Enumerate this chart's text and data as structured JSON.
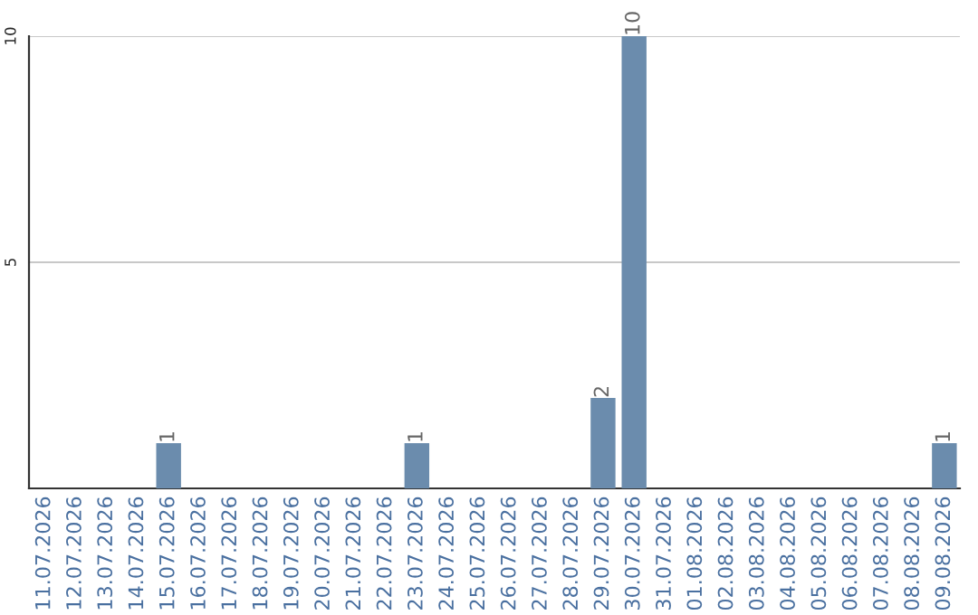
{
  "chart_data": {
    "type": "bar",
    "categories": [
      "11.07.2026",
      "12.07.2026",
      "13.07.2026",
      "14.07.2026",
      "15.07.2026",
      "16.07.2026",
      "17.07.2026",
      "18.07.2026",
      "19.07.2026",
      "20.07.2026",
      "21.07.2026",
      "22.07.2026",
      "23.07.2026",
      "24.07.2026",
      "25.07.2026",
      "26.07.2026",
      "27.07.2026",
      "28.07.2026",
      "29.07.2026",
      "30.07.2026",
      "31.07.2026",
      "01.08.2026",
      "02.08.2026",
      "03.08.2026",
      "04.08.2026",
      "05.08.2026",
      "06.08.2026",
      "07.08.2026",
      "08.08.2026",
      "09.08.2026"
    ],
    "values": [
      0,
      0,
      0,
      0,
      1,
      0,
      0,
      0,
      0,
      0,
      0,
      0,
      1,
      0,
      0,
      0,
      0,
      0,
      2,
      10,
      0,
      0,
      0,
      0,
      0,
      0,
      0,
      0,
      0,
      1
    ],
    "value_labels": [
      null,
      null,
      null,
      null,
      "1",
      null,
      null,
      null,
      null,
      null,
      null,
      null,
      "1",
      null,
      null,
      null,
      null,
      null,
      "2",
      "10",
      null,
      null,
      null,
      null,
      null,
      null,
      null,
      null,
      null,
      "1"
    ],
    "color": "#6b8cad",
    "ylim": [
      0,
      10
    ],
    "yticks": [
      5,
      10
    ],
    "grid": "y",
    "legend": false
  }
}
